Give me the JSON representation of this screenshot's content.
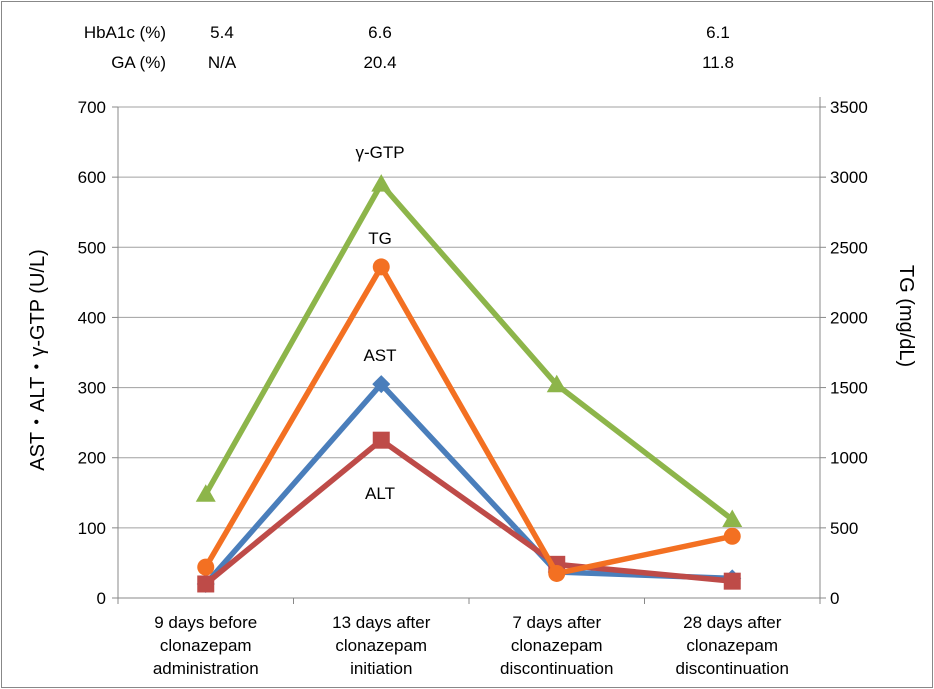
{
  "chart_data": {
    "type": "line",
    "categories": [
      [
        "9 days before",
        "clonazepam",
        "administration"
      ],
      [
        "13 days after",
        "clonazepam",
        "initiation"
      ],
      [
        "7 days after",
        "clonazepam",
        "discontinuation"
      ],
      [
        "28 days after",
        "clonazepam",
        "discontinuation"
      ]
    ],
    "ylabel_left": "AST・ALT・γ-GTP (U/L)",
    "ylabel_right": "TG (mg/dL)",
    "ylim_left": [
      0,
      700
    ],
    "ylim_right": [
      0,
      3500
    ],
    "yticks_left": [
      0,
      100,
      200,
      300,
      400,
      500,
      600,
      700
    ],
    "yticks_right": [
      0,
      500,
      1000,
      1500,
      2000,
      2500,
      3000,
      3500
    ],
    "grid": true,
    "series": [
      {
        "name": "γ-GTP",
        "axis": "left",
        "color": "#8db54a",
        "marker": "triangle",
        "values": [
          148,
          590,
          304,
          112
        ]
      },
      {
        "name": "TG",
        "axis": "right",
        "color": "#f37022",
        "marker": "circle",
        "values": [
          220,
          2360,
          175,
          440
        ]
      },
      {
        "name": "AST",
        "axis": "left",
        "color": "#4a7ebb",
        "marker": "diamond",
        "values": [
          20,
          305,
          37,
          28
        ]
      },
      {
        "name": "ALT",
        "axis": "left",
        "color": "#be4b48",
        "marker": "square",
        "values": [
          20,
          225,
          48,
          24
        ]
      }
    ],
    "top_rows": [
      {
        "label": "HbA1c (%)",
        "values": [
          "5.4",
          "6.6",
          "",
          "6.1"
        ]
      },
      {
        "label": "GA (%)",
        "values": [
          "N/A",
          "20.4",
          "",
          "11.8"
        ]
      }
    ]
  }
}
